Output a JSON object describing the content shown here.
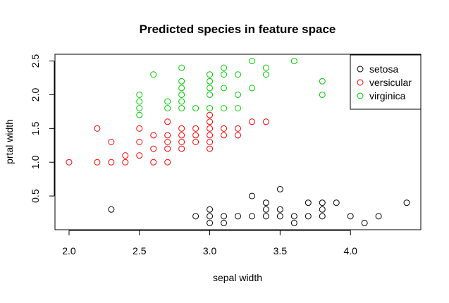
{
  "chart_data": {
    "type": "scatter",
    "title": "Predicted species in feature space",
    "xlabel": "sepal width",
    "ylabel": "prtal width",
    "xlim": [
      1.9,
      4.5
    ],
    "ylim": [
      0.0,
      2.6
    ],
    "x_ticks": [
      "2.0",
      "2.5",
      "3.0",
      "3.5",
      "4.0"
    ],
    "y_ticks": [
      "0.5",
      "1.0",
      "1.5",
      "2.0",
      "2.5"
    ],
    "grid": false,
    "legend_position": "top-right",
    "marker": "open-circle",
    "series": [
      {
        "name": "setosa",
        "color": "#000000",
        "points": [
          [
            2.3,
            0.3
          ],
          [
            2.9,
            0.2
          ],
          [
            3.0,
            0.1
          ],
          [
            3.0,
            0.2
          ],
          [
            3.0,
            0.3
          ],
          [
            3.1,
            0.1
          ],
          [
            3.1,
            0.2
          ],
          [
            3.2,
            0.2
          ],
          [
            3.3,
            0.2
          ],
          [
            3.3,
            0.5
          ],
          [
            3.4,
            0.2
          ],
          [
            3.4,
            0.3
          ],
          [
            3.4,
            0.4
          ],
          [
            3.5,
            0.2
          ],
          [
            3.5,
            0.3
          ],
          [
            3.5,
            0.6
          ],
          [
            3.6,
            0.1
          ],
          [
            3.6,
            0.2
          ],
          [
            3.7,
            0.2
          ],
          [
            3.7,
            0.4
          ],
          [
            3.8,
            0.2
          ],
          [
            3.8,
            0.3
          ],
          [
            3.8,
            0.4
          ],
          [
            3.9,
            0.4
          ],
          [
            4.0,
            0.2
          ],
          [
            4.1,
            0.1
          ],
          [
            4.2,
            0.2
          ],
          [
            4.4,
            0.4
          ]
        ]
      },
      {
        "name": "versicular",
        "color": "#ff0000",
        "points": [
          [
            2.0,
            1.0
          ],
          [
            2.2,
            1.0
          ],
          [
            2.2,
            1.5
          ],
          [
            2.3,
            1.0
          ],
          [
            2.3,
            1.3
          ],
          [
            2.4,
            1.0
          ],
          [
            2.4,
            1.1
          ],
          [
            2.5,
            1.1
          ],
          [
            2.5,
            1.3
          ],
          [
            2.5,
            1.5
          ],
          [
            2.6,
            1.0
          ],
          [
            2.6,
            1.2
          ],
          [
            2.6,
            1.4
          ],
          [
            2.7,
            1.0
          ],
          [
            2.7,
            1.2
          ],
          [
            2.7,
            1.3
          ],
          [
            2.7,
            1.4
          ],
          [
            2.7,
            1.6
          ],
          [
            2.8,
            1.2
          ],
          [
            2.8,
            1.3
          ],
          [
            2.8,
            1.4
          ],
          [
            2.8,
            1.5
          ],
          [
            2.9,
            1.3
          ],
          [
            2.9,
            1.4
          ],
          [
            2.9,
            1.5
          ],
          [
            3.0,
            1.2
          ],
          [
            3.0,
            1.3
          ],
          [
            3.0,
            1.4
          ],
          [
            3.0,
            1.5
          ],
          [
            3.0,
            1.6
          ],
          [
            3.0,
            1.7
          ],
          [
            3.1,
            1.4
          ],
          [
            3.1,
            1.5
          ],
          [
            3.2,
            1.4
          ],
          [
            3.2,
            1.5
          ],
          [
            3.3,
            1.6
          ],
          [
            3.4,
            1.6
          ]
        ]
      },
      {
        "name": "virginica",
        "color": "#00cc00",
        "points": [
          [
            2.5,
            1.7
          ],
          [
            2.5,
            1.8
          ],
          [
            2.5,
            1.9
          ],
          [
            2.5,
            2.0
          ],
          [
            2.6,
            2.3
          ],
          [
            2.7,
            1.8
          ],
          [
            2.7,
            1.9
          ],
          [
            2.8,
            1.8
          ],
          [
            2.8,
            1.9
          ],
          [
            2.8,
            2.0
          ],
          [
            2.8,
            2.1
          ],
          [
            2.8,
            2.2
          ],
          [
            2.8,
            2.4
          ],
          [
            2.9,
            1.8
          ],
          [
            3.0,
            1.8
          ],
          [
            3.0,
            2.0
          ],
          [
            3.0,
            2.1
          ],
          [
            3.0,
            2.2
          ],
          [
            3.0,
            2.3
          ],
          [
            3.1,
            1.8
          ],
          [
            3.1,
            2.1
          ],
          [
            3.1,
            2.3
          ],
          [
            3.1,
            2.4
          ],
          [
            3.2,
            1.8
          ],
          [
            3.2,
            2.0
          ],
          [
            3.2,
            2.3
          ],
          [
            3.3,
            2.1
          ],
          [
            3.3,
            2.5
          ],
          [
            3.4,
            2.3
          ],
          [
            3.4,
            2.4
          ],
          [
            3.6,
            2.5
          ],
          [
            3.8,
            2.0
          ],
          [
            3.8,
            2.2
          ]
        ]
      }
    ]
  }
}
